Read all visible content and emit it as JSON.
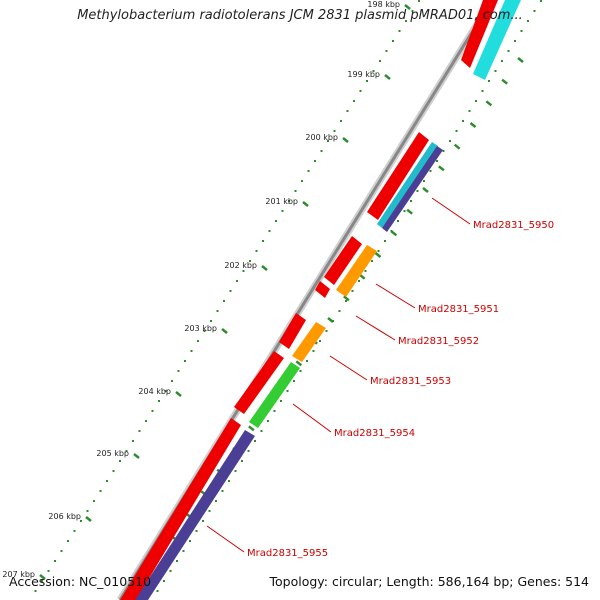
{
  "title": "Methylobacterium radiotolerans JCM 2831 plasmid pMRAD01, com...",
  "footer": {
    "accession": "Accession: NC_010510",
    "summary": "Topology: circular; Length: 586,164 bp; Genes: 514"
  },
  "ticks": [
    {
      "label": "198 kbp"
    },
    {
      "label": "199 kbp"
    },
    {
      "label": "200 kbp"
    },
    {
      "label": "201 kbp"
    },
    {
      "label": "202 kbp"
    },
    {
      "label": "203 kbp"
    },
    {
      "label": "204 kbp"
    },
    {
      "label": "205 kbp"
    },
    {
      "label": "206 kbp"
    },
    {
      "label": "207 kbp"
    }
  ],
  "gene_labels": [
    {
      "name": "Mrad2831_5950"
    },
    {
      "name": "Mrad2831_5951"
    },
    {
      "name": "Mrad2831_5952"
    },
    {
      "name": "Mrad2831_5953"
    },
    {
      "name": "Mrad2831_5954"
    },
    {
      "name": "Mrad2831_5955"
    }
  ],
  "colors": {
    "backbone": "#888888",
    "cds_forward": "#ee0000",
    "cds_reverse_cyan": "#22dddd",
    "cog_blue": "#4a3f94",
    "cog_orange": "#ff9900",
    "cog_green": "#33cc33",
    "ticks": "#2e8b2e",
    "label": "#cc0000"
  }
}
